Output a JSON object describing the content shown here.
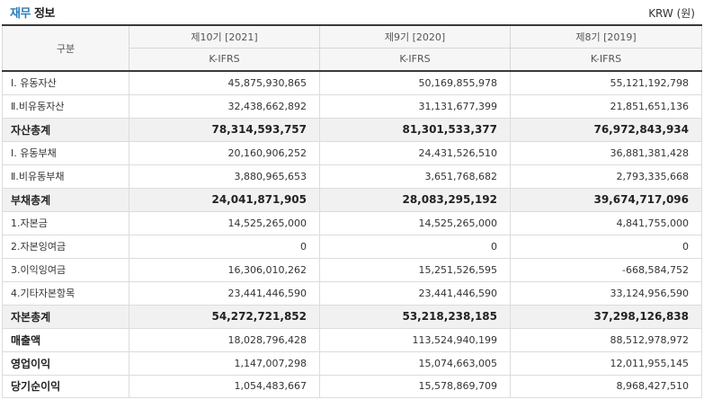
{
  "header": {
    "title_highlight": "재무",
    "title_rest": " 정보",
    "unit": "KRW (원)"
  },
  "table": {
    "corner_label": "구분",
    "periods": [
      {
        "label": "제10기 [2021]",
        "standard": "K-IFRS"
      },
      {
        "label": "제9기 [2020]",
        "standard": "K-IFRS"
      },
      {
        "label": "제8기 [2019]",
        "standard": "K-IFRS"
      }
    ],
    "rows": [
      {
        "label": "Ⅰ. 유동자산",
        "values": [
          "45,875,930,865",
          "50,169,855,978",
          "55,121,192,798"
        ]
      },
      {
        "label": "Ⅱ.비유동자산",
        "values": [
          "32,438,662,892",
          "31,131,677,399",
          "21,851,651,136"
        ]
      },
      {
        "label": "자산총계",
        "values": [
          "78,314,593,757",
          "81,301,533,377",
          "76,972,843,934"
        ]
      },
      {
        "label": "Ⅰ. 유동부채",
        "values": [
          "20,160,906,252",
          "24,431,526,510",
          "36,881,381,428"
        ]
      },
      {
        "label": "Ⅱ.비유동부채",
        "values": [
          "3,880,965,653",
          "3,651,768,682",
          "2,793,335,668"
        ]
      },
      {
        "label": "부채총계",
        "values": [
          "24,041,871,905",
          "28,083,295,192",
          "39,674,717,096"
        ]
      },
      {
        "label": "1.자본금",
        "values": [
          "14,525,265,000",
          "14,525,265,000",
          "4,841,755,000"
        ]
      },
      {
        "label": "2.자본잉여금",
        "values": [
          "0",
          "0",
          "0"
        ]
      },
      {
        "label": "3.이익잉여금",
        "values": [
          "16,306,010,262",
          "15,251,526,595",
          "-668,584,752"
        ]
      },
      {
        "label": "4.기타자본항목",
        "values": [
          "23,441,446,590",
          "23,441,446,590",
          "33,124,956,590"
        ]
      },
      {
        "label": "자본총계",
        "values": [
          "54,272,721,852",
          "53,218,238,185",
          "37,298,126,838"
        ]
      },
      {
        "label": "매출액",
        "values": [
          "18,028,796,428",
          "113,524,940,199",
          "88,512,978,972"
        ]
      },
      {
        "label": "영업이익",
        "values": [
          "1,147,007,298",
          "15,074,663,005",
          "12,011,955,145"
        ]
      },
      {
        "label": "당기순이익",
        "values": [
          "1,054,483,667",
          "15,578,869,709",
          "8,968,427,510"
        ]
      }
    ]
  }
}
